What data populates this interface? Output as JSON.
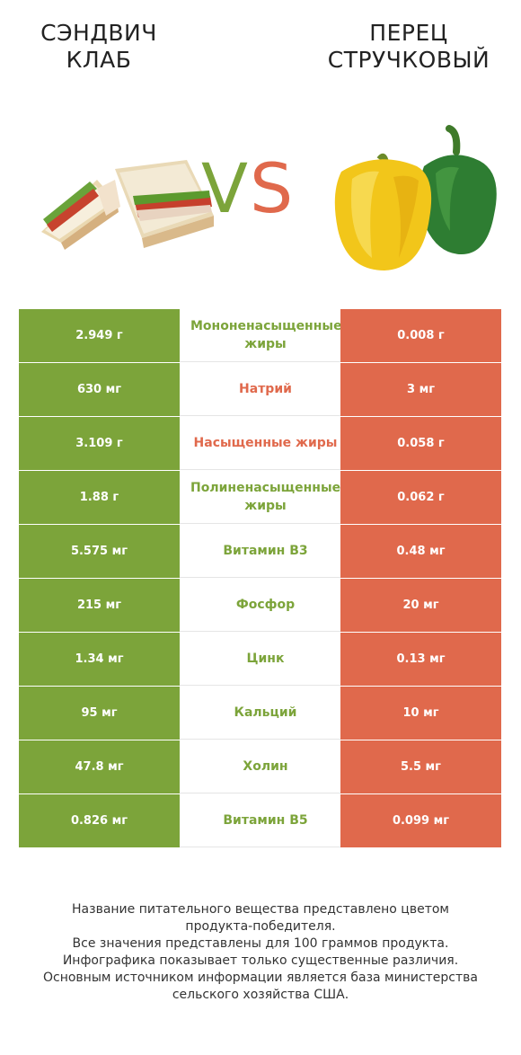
{
  "header": {
    "left_title_line1": "СЭНДВИЧ",
    "left_title_line2": "КЛАБ",
    "right_title_line1": "ПЕРЕЦ",
    "right_title_line2": "СТРУЧКОВЫЙ",
    "vs_v": "V",
    "vs_s": "S"
  },
  "colors": {
    "winner_left": "#7ca43a",
    "winner_right": "#e0694c"
  },
  "rows": [
    {
      "left": "2.949 г",
      "name": "Мононенасыщенные жиры",
      "right": "0.008 г",
      "winner": "left"
    },
    {
      "left": "630 мг",
      "name": "Натрий",
      "right": "3 мг",
      "winner": "right"
    },
    {
      "left": "3.109 г",
      "name": "Насыщенные жиры",
      "right": "0.058 г",
      "winner": "right"
    },
    {
      "left": "1.88 г",
      "name": "Полиненасыщенные жиры",
      "right": "0.062 г",
      "winner": "left"
    },
    {
      "left": "5.575 мг",
      "name": "Витамин B3",
      "right": "0.48 мг",
      "winner": "left"
    },
    {
      "left": "215 мг",
      "name": "Фосфор",
      "right": "20 мг",
      "winner": "left"
    },
    {
      "left": "1.34 мг",
      "name": "Цинк",
      "right": "0.13 мг",
      "winner": "left"
    },
    {
      "left": "95 мг",
      "name": "Кальций",
      "right": "10 мг",
      "winner": "left"
    },
    {
      "left": "47.8 мг",
      "name": "Холин",
      "right": "5.5 мг",
      "winner": "left"
    },
    {
      "left": "0.826 мг",
      "name": "Витамин B5",
      "right": "0.099 мг",
      "winner": "left"
    }
  ],
  "footer": {
    "line1": "Название питательного вещества представлено цветом",
    "line2": "продукта-победителя.",
    "line3": "Все значения представлены для 100 граммов продукта.",
    "line4": "Инфографика показывает только существенные различия.",
    "line5": "Основным источником информации является база министерства",
    "line6": "сельского хозяйства США."
  }
}
